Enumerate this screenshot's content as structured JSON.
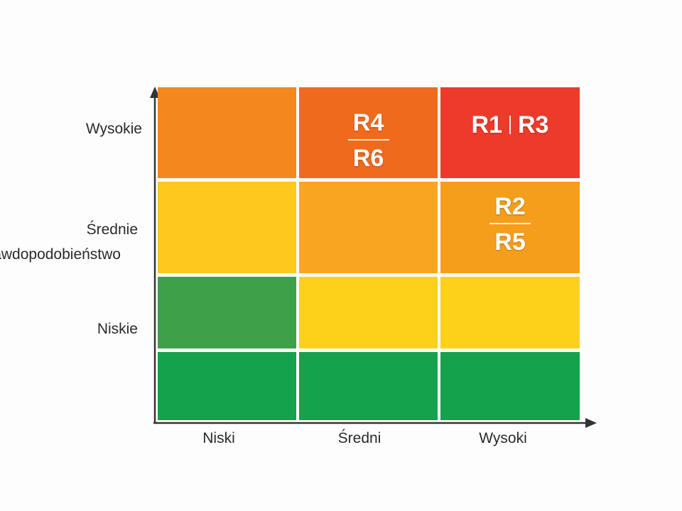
{
  "axes": {
    "y_title": "Prawdopodobieństwo",
    "y_ticks": [
      "Wysokie",
      "Średnie",
      "Niskie"
    ],
    "x_ticks": [
      "Niski",
      "Średni",
      "Wysoki"
    ]
  },
  "rows": [
    {
      "cells": [
        {
          "color": "#f5871f",
          "labels": []
        },
        {
          "color": "#f06a1e",
          "labels": [
            "R4",
            "R6"
          ],
          "layout": "stacked"
        },
        {
          "color": "#ee3a2a",
          "labels": [
            "R1",
            "R3"
          ],
          "layout": "inline"
        }
      ]
    },
    {
      "cells": [
        {
          "color": "#fcc91c",
          "labels": []
        },
        {
          "color": "#f9a522",
          "labels": []
        },
        {
          "color": "#f59e1c",
          "labels": [
            "R2",
            "R5"
          ],
          "layout": "stacked"
        }
      ]
    },
    {
      "cells": [
        {
          "color": "#3fa04a",
          "labels": []
        },
        {
          "color": "#fdd01a",
          "labels": []
        },
        {
          "color": "#fdd01a",
          "labels": []
        }
      ]
    },
    {
      "cells": [
        {
          "color": "#15a24c",
          "labels": []
        },
        {
          "color": "#15a24c",
          "labels": []
        },
        {
          "color": "#15a24c",
          "labels": []
        }
      ]
    }
  ],
  "colors": {
    "axis": "#333333",
    "gap": "#ffffff"
  }
}
